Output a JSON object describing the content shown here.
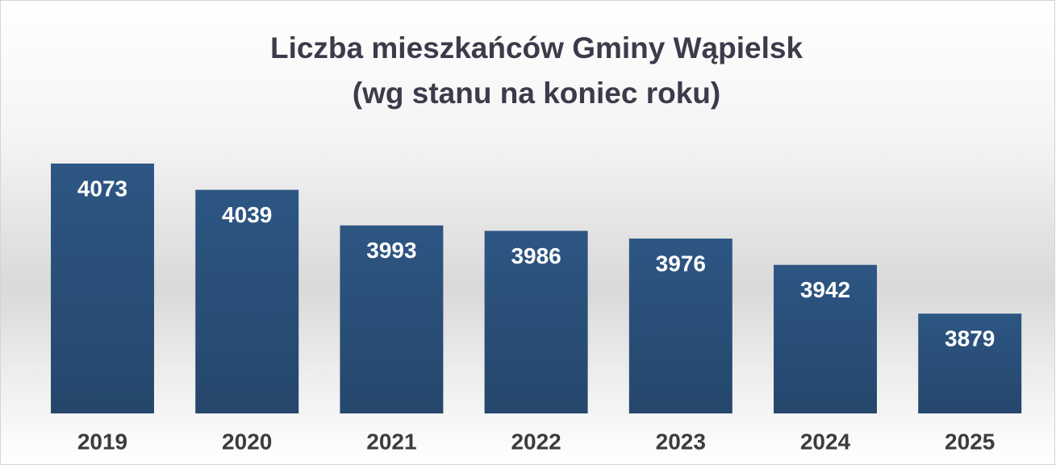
{
  "chart_data": {
    "type": "bar",
    "title": "Liczba mieszkańców Gminy Wąpielsk",
    "subtitle": "(wg stanu na koniec roku)",
    "categories": [
      "2019",
      "2020",
      "2021",
      "2022",
      "2023",
      "2024",
      "2025"
    ],
    "values": [
      4073,
      4039,
      3993,
      3986,
      3976,
      3942,
      3879
    ],
    "color": "#2d5683",
    "ylim": [
      3750,
      4100
    ]
  }
}
